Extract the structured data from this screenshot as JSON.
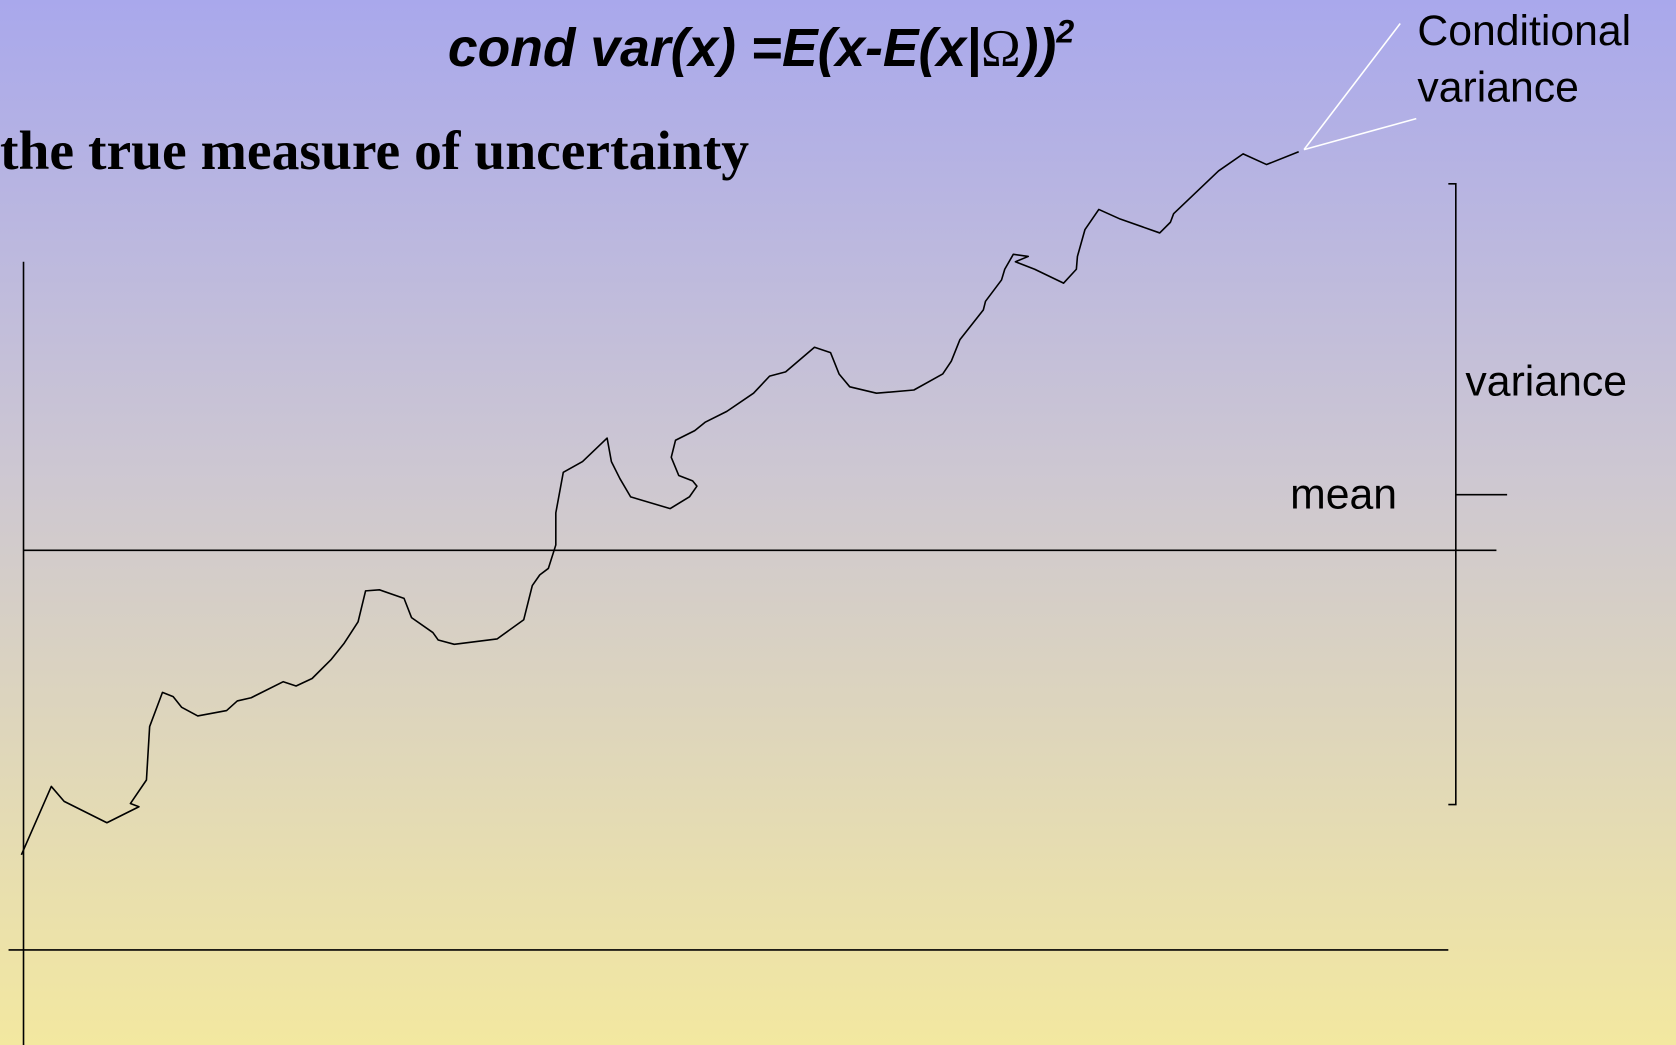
{
  "formula": {
    "main": "cond var(x) =E(x-E(x|",
    "omega": "Ω",
    "close": "))",
    "exponent": "2"
  },
  "subtitle": "the true measure of uncertainty",
  "labels": {
    "conditional_variance": [
      "Conditional",
      "variance"
    ],
    "variance": "variance",
    "mean": "mean"
  }
}
